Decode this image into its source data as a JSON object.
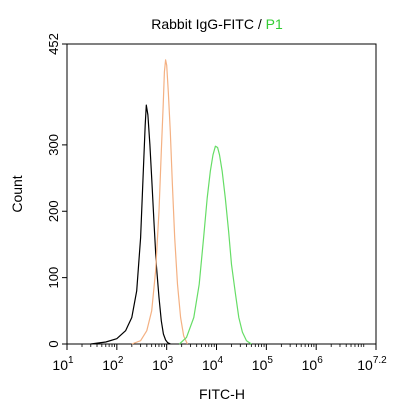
{
  "chart_data": {
    "type": "line",
    "title_prefix": "Rabbit IgG-FITC / ",
    "title_highlight": "P1",
    "xlabel": "FITC-H",
    "ylabel": "Count",
    "x_scale": "log",
    "xlim": [
      10,
      15848931.9
    ],
    "ylim": [
      0,
      452
    ],
    "x_ticks": [
      {
        "value": 10,
        "base": "10",
        "exp": "1"
      },
      {
        "value": 100,
        "base": "10",
        "exp": "2"
      },
      {
        "value": 1000,
        "base": "10",
        "exp": "3"
      },
      {
        "value": 10000,
        "base": "10",
        "exp": "4"
      },
      {
        "value": 100000,
        "base": "10",
        "exp": "5"
      },
      {
        "value": 1000000,
        "base": "10",
        "exp": "6"
      },
      {
        "value": 15848931.9,
        "base": "10",
        "exp": "7.2"
      }
    ],
    "y_ticks": [
      {
        "value": 0,
        "label": "0"
      },
      {
        "value": 100,
        "label": "100"
      },
      {
        "value": 200,
        "label": "200"
      },
      {
        "value": 300,
        "label": "300"
      },
      {
        "value": 452,
        "label": "452"
      }
    ],
    "series": [
      {
        "color": "#000000",
        "x": [
          30,
          60,
          100,
          150,
          200,
          250,
          300,
          340,
          370,
          390,
          420,
          460,
          500,
          560,
          620,
          700,
          780,
          860,
          950,
          1050,
          1200
        ],
        "y": [
          0,
          3,
          8,
          20,
          40,
          80,
          160,
          260,
          330,
          360,
          345,
          300,
          250,
          180,
          120,
          70,
          35,
          15,
          6,
          2,
          0
        ]
      },
      {
        "color": "#f4b183",
        "x": [
          200,
          300,
          400,
          500,
          600,
          700,
          780,
          850,
          900,
          950,
          1000,
          1080,
          1180,
          1300,
          1450,
          1650,
          1900,
          2200,
          2600
        ],
        "y": [
          0,
          5,
          20,
          50,
          110,
          200,
          290,
          360,
          410,
          428,
          420,
          380,
          320,
          240,
          160,
          90,
          40,
          12,
          0
        ]
      },
      {
        "color": "#66dd66",
        "x": [
          1800,
          2500,
          3500,
          4500,
          5500,
          6500,
          7500,
          8500,
          9500,
          10500,
          11500,
          13000,
          15000,
          17500,
          20000,
          24000,
          28000,
          33000,
          40000,
          50000
        ],
        "y": [
          0,
          10,
          40,
          90,
          160,
          220,
          260,
          285,
          298,
          296,
          285,
          260,
          220,
          170,
          120,
          75,
          40,
          18,
          5,
          0
        ]
      }
    ]
  }
}
